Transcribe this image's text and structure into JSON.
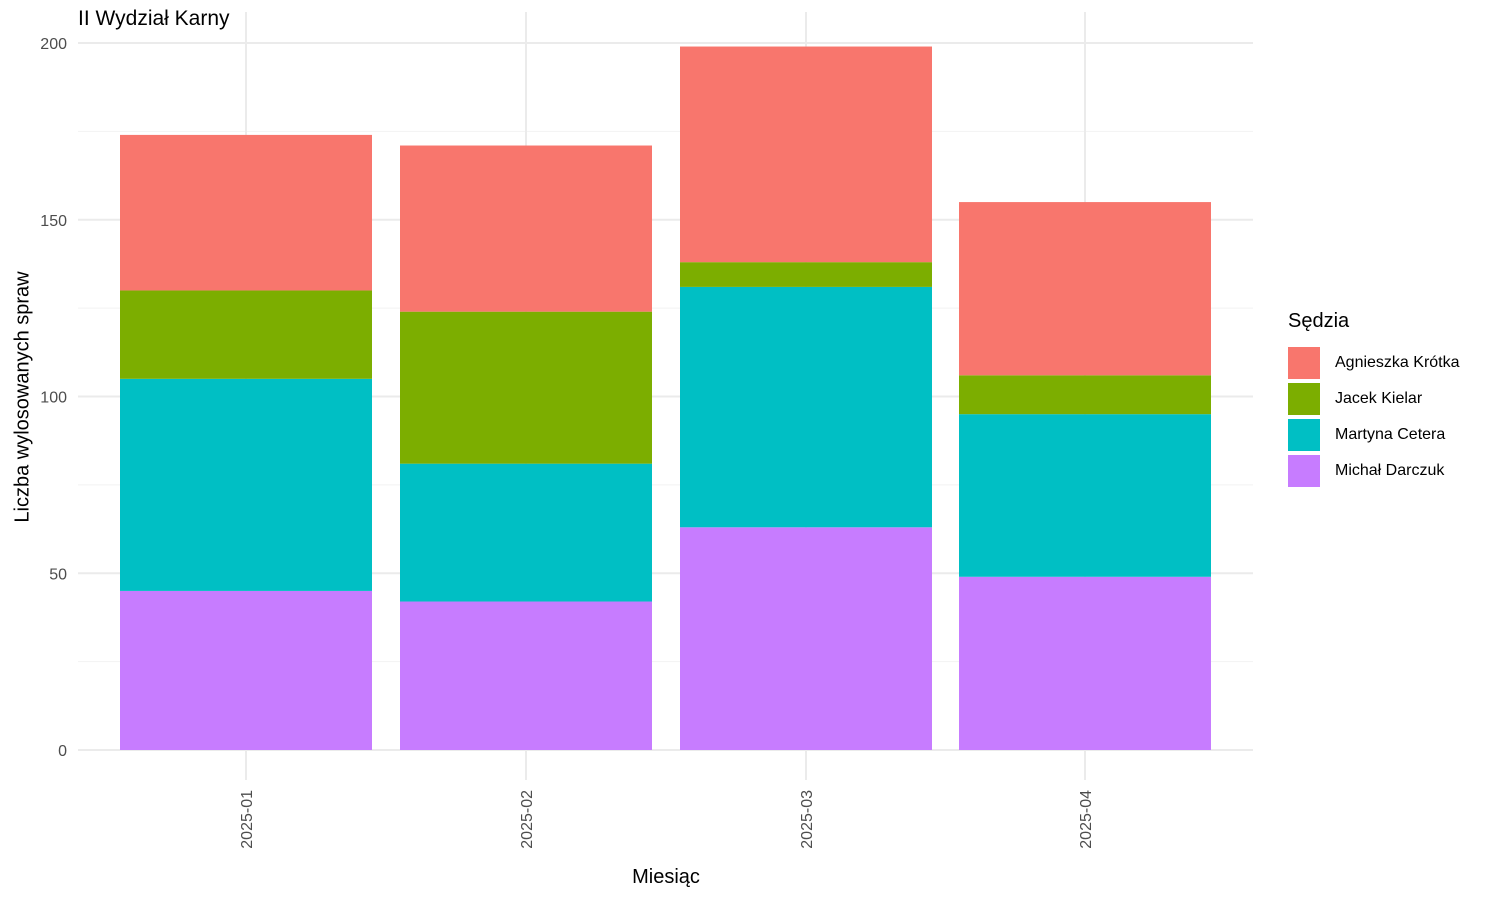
{
  "chart_data": {
    "type": "bar",
    "stacked": true,
    "title": "II Wydział Karny",
    "xlabel": "Miesiąc",
    "ylabel": "Liczba wylosowanych spraw",
    "categories": [
      "2025-01",
      "2025-02",
      "2025-03",
      "2025-04"
    ],
    "ylim": [
      0,
      200
    ],
    "yticks": [
      0,
      50,
      100,
      150,
      200
    ],
    "grid": true,
    "legend": {
      "title": "Sędzia",
      "placement": "right"
    },
    "series": [
      {
        "name": "Agnieszka Krótka",
        "color": "#F8766D",
        "values": [
          44,
          47,
          61,
          49
        ]
      },
      {
        "name": "Jacek Kielar",
        "color": "#7CAE00",
        "values": [
          25,
          43,
          7,
          11
        ]
      },
      {
        "name": "Martyna Cetera",
        "color": "#00BFC4",
        "values": [
          60,
          39,
          68,
          46
        ]
      },
      {
        "name": "Michał Darczuk",
        "color": "#C77CFF",
        "values": [
          45,
          42,
          63,
          49
        ]
      }
    ]
  }
}
